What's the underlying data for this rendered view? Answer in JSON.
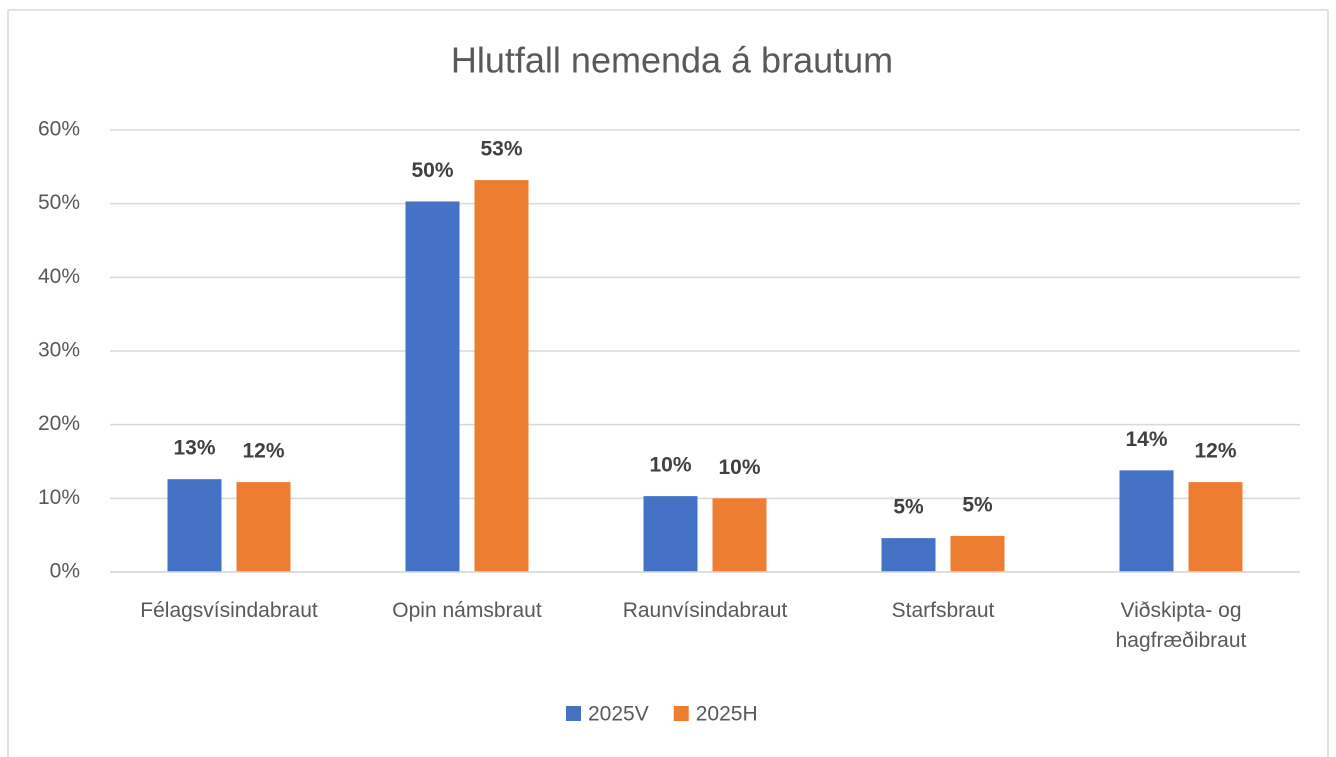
{
  "chart_data": {
    "type": "bar",
    "title": "Hlutfall nemenda á brautum",
    "categories": [
      "Félagsvísindabraut",
      "Opin námsbraut",
      "Raunvísindabraut",
      "Starfsbraut",
      "Viðskipta- og hagfræðibraut"
    ],
    "series": [
      {
        "name": "2025V",
        "color": "#4472c4",
        "values": [
          12.6,
          50.3,
          10.3,
          4.6,
          13.8
        ],
        "value_labels": [
          "13%",
          "50%",
          "10%",
          "5%",
          "14%"
        ]
      },
      {
        "name": "2025H",
        "color": "#ed7d31",
        "values": [
          12.2,
          53.2,
          10.0,
          4.9,
          12.2
        ],
        "value_labels": [
          "12%",
          "53%",
          "10%",
          "5%",
          "12%"
        ]
      }
    ],
    "ylim": [
      0,
      60
    ],
    "yticks": [
      {
        "value": 0,
        "label": "0%"
      },
      {
        "value": 10,
        "label": "10%"
      },
      {
        "value": 20,
        "label": "20%"
      },
      {
        "value": 30,
        "label": "30%"
      },
      {
        "value": 40,
        "label": "40%"
      },
      {
        "value": 50,
        "label": "50%"
      },
      {
        "value": 60,
        "label": "60%"
      }
    ],
    "grid": true,
    "legend": "bottom"
  }
}
